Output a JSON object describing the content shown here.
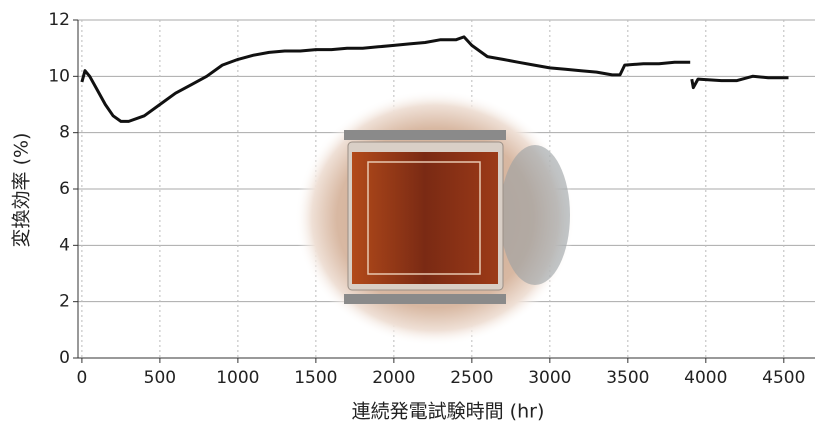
{
  "chart_data": {
    "type": "line",
    "x_label": "連続発電試験時間 (hr)",
    "y_label": "変換効率 (%)",
    "x": [
      0,
      20,
      50,
      100,
      150,
      200,
      250,
      300,
      400,
      500,
      600,
      700,
      800,
      900,
      1000,
      1100,
      1200,
      1300,
      1400,
      1500,
      1600,
      1700,
      1800,
      1900,
      2000,
      2100,
      2200,
      2300,
      2400,
      2450,
      2500,
      2600,
      2700,
      2800,
      2900,
      3000,
      3100,
      3200,
      3300,
      3400,
      3450,
      3480,
      3600,
      3700,
      3800,
      3900,
      3905,
      3910,
      3920,
      3950,
      4100,
      4200,
      4300,
      4400,
      4500,
      4530
    ],
    "series": [
      {
        "color": "#111111",
        "values": [
          9.8,
          10.2,
          10.0,
          9.5,
          9.0,
          8.6,
          8.4,
          8.4,
          8.6,
          9.0,
          9.4,
          9.7,
          10.0,
          10.4,
          10.6,
          10.75,
          10.85,
          10.9,
          10.9,
          10.95,
          10.95,
          11.0,
          11.0,
          11.05,
          11.1,
          11.15,
          11.2,
          11.3,
          11.3,
          11.4,
          11.1,
          10.7,
          10.6,
          10.5,
          10.4,
          10.3,
          10.25,
          10.2,
          10.15,
          10.05,
          10.05,
          10.4,
          10.45,
          10.45,
          10.5,
          10.5,
          null,
          9.9,
          9.6,
          9.9,
          9.85,
          9.85,
          10.0,
          9.95,
          9.95,
          9.95
        ]
      }
    ],
    "xlim": [
      -25,
      4700
    ],
    "ylim": [
      0,
      12
    ],
    "xticks": [
      0,
      500,
      1000,
      1500,
      2000,
      2500,
      3000,
      3500,
      4000,
      4500
    ],
    "yticks": [
      0,
      2,
      4,
      6,
      8,
      10,
      12
    ],
    "grid": true
  }
}
